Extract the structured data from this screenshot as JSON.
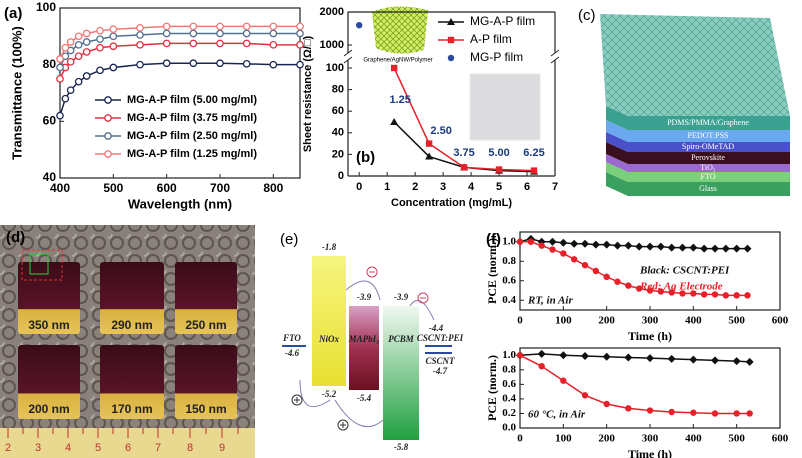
{
  "chart_data": [
    {
      "type": "line",
      "panel_label": "(a)",
      "x_label": "Wavelength (nm)",
      "y_label": "Transmittance (100%)",
      "x": [
        400,
        410,
        420,
        435,
        450,
        475,
        500,
        550,
        600,
        650,
        700,
        750,
        800,
        850
      ],
      "xlim": [
        400,
        850
      ],
      "xticks": [
        400,
        500,
        600,
        700,
        800
      ],
      "ylim": [
        40,
        100
      ],
      "yticks": [
        40,
        60,
        80,
        100
      ],
      "legend": "lower right",
      "series": [
        {
          "name": "MG-A-P film (5.00 mg/ml)",
          "color": "#1a2550",
          "marker": "open-circle",
          "values": [
            62,
            68,
            71,
            74,
            76,
            78,
            79,
            80,
            80.5,
            80.5,
            80.5,
            80.3,
            80,
            80
          ]
        },
        {
          "name": "MG-A-P film (3.75 mg/ml)",
          "color": "#e03040",
          "marker": "open-circle",
          "values": [
            75,
            79,
            81,
            83,
            84.5,
            86,
            86.5,
            87,
            87.5,
            87.5,
            87.5,
            87.5,
            87,
            87
          ]
        },
        {
          "name": "MG-A-P film (2.50 mg/ml)",
          "color": "#557090",
          "marker": "open-circle",
          "values": [
            79,
            83,
            85,
            87,
            88,
            89,
            90,
            90.5,
            91,
            91,
            91,
            91,
            91,
            91
          ]
        },
        {
          "name": "MG-A-P film (1.25 mg/ml)",
          "color": "#f07878",
          "marker": "open-circle",
          "values": [
            82,
            86,
            88,
            90,
            91,
            92,
            92.5,
            93,
            93.5,
            93.5,
            93.5,
            93.5,
            93.5,
            93.5
          ]
        }
      ]
    },
    {
      "type": "line",
      "panel_label": "(b)",
      "x_label": "Concentration (mg/mL)",
      "y_label": "Sheet resistance (Ω/□)",
      "xlim": [
        -0.4,
        7
      ],
      "xticks": [
        0,
        1,
        2,
        3,
        4,
        5,
        6,
        7
      ],
      "ylim": [
        0,
        2000
      ],
      "axis_break": [
        100,
        1000
      ],
      "yticks": [
        0,
        20,
        40,
        60,
        80,
        100,
        1000,
        2000
      ],
      "legend": "upper right",
      "inset_label": "Graphene/AgNW/Polymer",
      "annotations": [
        {
          "text": "1.25"
        },
        {
          "text": "2.50"
        },
        {
          "text": "3.75"
        },
        {
          "text": "5.00"
        },
        {
          "text": "6.25"
        }
      ],
      "series": [
        {
          "name": "MG-A-P film",
          "color": "#111111",
          "marker": "triangle",
          "x": [
            1.25,
            2.5,
            3.75,
            5,
            6.25
          ],
          "values": [
            50,
            18,
            8,
            5,
            4
          ]
        },
        {
          "name": "A-P film",
          "color": "#e8202a",
          "marker": "square",
          "x": [
            1.25,
            2.5,
            3.75,
            5,
            6.25
          ],
          "values": [
            100,
            30,
            8,
            6,
            5
          ]
        },
        {
          "name": "MG-P film",
          "color": "#2a4aa0",
          "marker": "circle",
          "line": false,
          "x": [
            0
          ],
          "values": [
            1600
          ]
        }
      ]
    },
    {
      "type": "line",
      "panel_label": "(f)",
      "x_label": "Time (h)",
      "y_label": "PCE (norm.)",
      "x": [
        0,
        25,
        50,
        75,
        100,
        125,
        150,
        175,
        200,
        225,
        250,
        275,
        300,
        325,
        350,
        375,
        400,
        425,
        450,
        475,
        500,
        525
      ],
      "xlim": [
        0,
        600
      ],
      "xticks": [
        0,
        100,
        200,
        300,
        400,
        500,
        600
      ],
      "ylim": [
        0.3,
        1.1
      ],
      "yticks": [
        0.4,
        0.6,
        0.8,
        {
          "value": 1,
          "label": "1.0"
        }
      ],
      "annotations": [
        {
          "text": "Black: CSCNT:PEI",
          "color": "#111111"
        },
        {
          "text": "Red: Ag Electrode",
          "color": "#e8202a"
        },
        {
          "text": "RT, in Air",
          "color": "#111111"
        }
      ],
      "series": [
        {
          "color": "#111111",
          "marker": "diamond",
          "values": [
            1.0,
            1.03,
            1.0,
            1.0,
            0.99,
            0.98,
            0.98,
            0.97,
            0.97,
            0.96,
            0.96,
            0.95,
            0.95,
            0.95,
            0.94,
            0.94,
            0.94,
            0.93,
            0.93,
            0.93,
            0.93,
            0.93
          ]
        },
        {
          "color": "#e8202a",
          "marker": "circle",
          "values": [
            1.0,
            1.0,
            0.96,
            0.92,
            0.88,
            0.82,
            0.76,
            0.7,
            0.64,
            0.59,
            0.55,
            0.52,
            0.5,
            0.49,
            0.48,
            0.47,
            0.47,
            0.46,
            0.46,
            0.45,
            0.45,
            0.45
          ]
        }
      ]
    },
    {
      "type": "line",
      "x_label": "Time (h)",
      "y_label": "PCE (norm.)",
      "x": [
        0,
        50,
        100,
        150,
        200,
        250,
        300,
        350,
        400,
        450,
        500,
        530
      ],
      "xlim": [
        0,
        600
      ],
      "xticks": [
        0,
        100,
        200,
        300,
        400,
        500,
        600
      ],
      "ylim": [
        0,
        1.1
      ],
      "yticks": [
        {
          "value": 0,
          "label": "0.0"
        },
        0.2,
        0.4,
        0.6,
        0.8,
        {
          "value": 1,
          "label": "1.0"
        }
      ],
      "annotations": [
        {
          "text": "60 °C, in Air",
          "color": "#111111"
        }
      ],
      "series": [
        {
          "color": "#111111",
          "marker": "diamond",
          "values": [
            1.0,
            1.02,
            1.0,
            0.99,
            0.98,
            0.97,
            0.96,
            0.95,
            0.94,
            0.93,
            0.92,
            0.91
          ]
        },
        {
          "color": "#e8202a",
          "marker": "circle",
          "values": [
            1.0,
            0.85,
            0.65,
            0.45,
            0.33,
            0.27,
            0.24,
            0.22,
            0.21,
            0.2,
            0.2,
            0.2
          ]
        }
      ]
    }
  ],
  "panel_c": {
    "label": "(c)",
    "layers": [
      "PDMS/PMMA/Graphene",
      "PEDOT:PSS",
      "Spiro-OMeTAD",
      "Perovskite",
      "TiO₂",
      "FTO",
      "Glass"
    ]
  },
  "panel_d": {
    "label": "(d)",
    "samples": [
      "350 nm",
      "290 nm",
      "250 nm",
      "200 nm",
      "170 nm",
      "150 nm"
    ],
    "ruler": [
      "2",
      "3",
      "4",
      "5",
      "6",
      "7",
      "8",
      "9"
    ]
  },
  "panel_e": {
    "label": "(e)",
    "FTO": {
      "name": "FTO",
      "level": "-4.6"
    },
    "NiOx": {
      "name": "NiOx",
      "top": "-1.8",
      "bottom": "-5.2"
    },
    "MAPbI3": {
      "name": "MAPbI₃",
      "top": "-3.9",
      "bottom": "-5.4"
    },
    "PCBM": {
      "name": "PCBM",
      "top": "-3.9",
      "bottom": "-5.8"
    },
    "CSCNT_PEI": {
      "name": "CSCNT:PEI",
      "level": "-4.4"
    },
    "CSCNT": {
      "name": "CSCNT",
      "level": "-4.7"
    }
  }
}
